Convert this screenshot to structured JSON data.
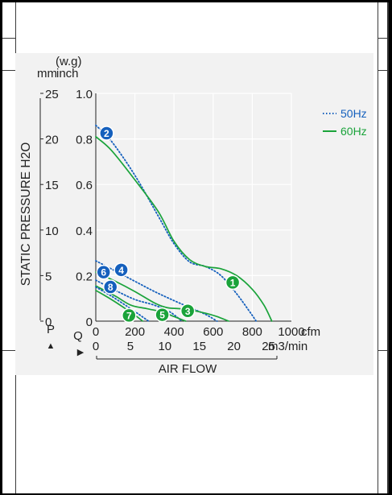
{
  "chart_data": {
    "type": "line",
    "ylabel": "STATIC PRESSURE H2O",
    "xlabel": "AIR FLOW",
    "y_unit_mm": "mm",
    "y_unit_inch": "inch",
    "y_unit_wg": "(w.g)",
    "y_axis_letter": "P",
    "x_axis_letter": "Q",
    "x_unit_cfm": "cfm",
    "x_unit_m3": "m3/min",
    "xlim_cfm": [
      0,
      1000
    ],
    "ylim_inch": [
      0,
      1.0
    ],
    "y_ticks_inch": [
      "0",
      "0.2",
      "0.4",
      "0.6",
      "0.8",
      "1.0"
    ],
    "y_ticks_mm": [
      "0",
      "5",
      "10",
      "15",
      "20",
      "25"
    ],
    "x_ticks_cfm": [
      "0",
      "200",
      "400",
      "600",
      "800",
      "1000"
    ],
    "x_ticks_m3": [
      "0",
      "5",
      "10",
      "15",
      "20",
      "25"
    ],
    "legend": [
      {
        "label": "50Hz",
        "style": "dotted",
        "color": "#1560bd"
      },
      {
        "label": "60Hz",
        "style": "solid",
        "color": "#1aa33a"
      }
    ],
    "grid": true,
    "legend_position": "right",
    "series": [
      {
        "id": "2",
        "hz": "50Hz",
        "color": "#1560bd",
        "points": [
          [
            0,
            0.86
          ],
          [
            80,
            0.79
          ],
          [
            200,
            0.64
          ],
          [
            320,
            0.46
          ],
          [
            400,
            0.34
          ],
          [
            480,
            0.26
          ],
          [
            560,
            0.24
          ],
          [
            640,
            0.2
          ],
          [
            720,
            0.12
          ],
          [
            780,
            0.05
          ],
          [
            820,
            0
          ]
        ]
      },
      {
        "id": "1",
        "hz": "60Hz",
        "color": "#1aa33a",
        "points": [
          [
            0,
            0.81
          ],
          [
            80,
            0.75
          ],
          [
            200,
            0.62
          ],
          [
            320,
            0.48
          ],
          [
            400,
            0.35
          ],
          [
            480,
            0.27
          ],
          [
            560,
            0.24
          ],
          [
            640,
            0.23
          ],
          [
            720,
            0.2
          ],
          [
            800,
            0.14
          ],
          [
            860,
            0.07
          ],
          [
            900,
            0
          ]
        ]
      },
      {
        "id": "4",
        "hz": "50Hz",
        "color": "#1560bd",
        "points": [
          [
            0,
            0.265
          ],
          [
            100,
            0.22
          ],
          [
            200,
            0.175
          ],
          [
            300,
            0.13
          ],
          [
            400,
            0.09
          ],
          [
            480,
            0.06
          ],
          [
            560,
            0.03
          ],
          [
            620,
            0
          ]
        ]
      },
      {
        "id": "3",
        "hz": "60Hz",
        "color": "#1aa33a",
        "points": [
          [
            0,
            0.215
          ],
          [
            100,
            0.175
          ],
          [
            200,
            0.13
          ],
          [
            300,
            0.08
          ],
          [
            360,
            0.06
          ],
          [
            420,
            0.055
          ],
          [
            480,
            0.05
          ],
          [
            560,
            0.035
          ],
          [
            620,
            0.02
          ],
          [
            680,
            0
          ]
        ]
      },
      {
        "id": "6",
        "hz": "50Hz",
        "color": "#1560bd",
        "points": [
          [
            0,
            0.18
          ],
          [
            100,
            0.135
          ],
          [
            200,
            0.095
          ],
          [
            300,
            0.07
          ],
          [
            380,
            0.04
          ],
          [
            440,
            0
          ]
        ]
      },
      {
        "id": "5",
        "hz": "60Hz",
        "color": "#1aa33a",
        "points": [
          [
            0,
            0.155
          ],
          [
            100,
            0.11
          ],
          [
            180,
            0.07
          ],
          [
            260,
            0.055
          ],
          [
            340,
            0.04
          ],
          [
            400,
            0.02
          ],
          [
            460,
            0
          ]
        ]
      },
      {
        "id": "8",
        "hz": "50Hz",
        "color": "#1560bd",
        "points": [
          [
            0,
            0.15
          ],
          [
            80,
            0.11
          ],
          [
            160,
            0.065
          ],
          [
            220,
            0.03
          ],
          [
            270,
            0
          ]
        ]
      },
      {
        "id": "7",
        "hz": "60Hz",
        "color": "#1aa33a",
        "points": [
          [
            0,
            0.135
          ],
          [
            80,
            0.095
          ],
          [
            160,
            0.05
          ],
          [
            210,
            0.02
          ],
          [
            240,
            0
          ]
        ]
      }
    ],
    "curve_labels": [
      {
        "text": "2",
        "color": "#1560bd",
        "x": 55,
        "y": 0.825
      },
      {
        "text": "1",
        "color": "#1aa33a",
        "x": 700,
        "y": 0.17
      },
      {
        "text": "4",
        "color": "#1560bd",
        "x": 130,
        "y": 0.225
      },
      {
        "text": "6",
        "color": "#1560bd",
        "x": 40,
        "y": 0.215
      },
      {
        "text": "8",
        "color": "#1560bd",
        "x": 75,
        "y": 0.15
      },
      {
        "text": "3",
        "color": "#1aa33a",
        "x": 470,
        "y": 0.045
      },
      {
        "text": "5",
        "color": "#1aa33a",
        "x": 340,
        "y": 0.028
      },
      {
        "text": "7",
        "color": "#1aa33a",
        "x": 170,
        "y": 0.025
      }
    ]
  }
}
